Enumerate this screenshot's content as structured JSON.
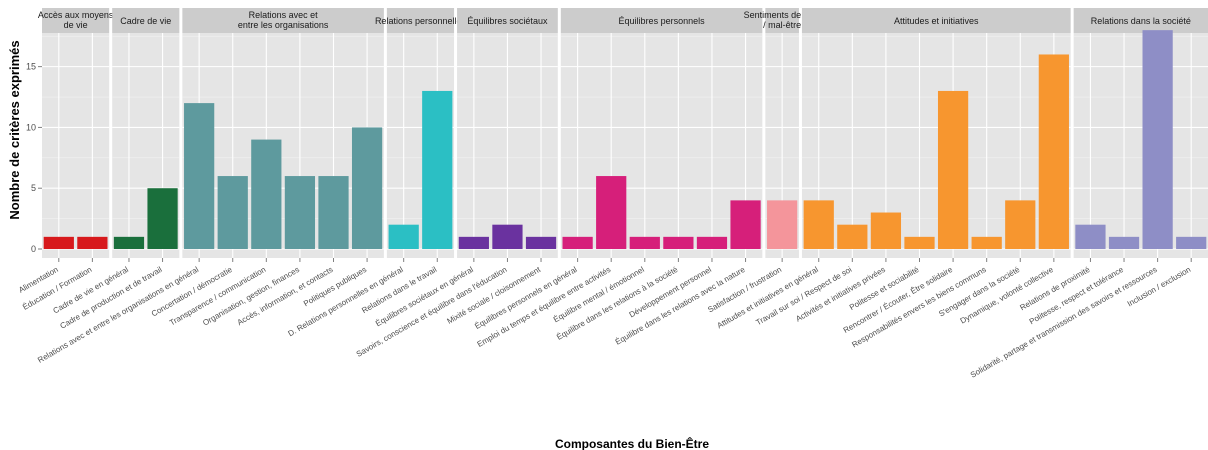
{
  "chart_data": {
    "type": "bar",
    "xlabel": "Composantes du Bien-Être",
    "ylabel": "Nombre de critères exprimés",
    "ylim": [
      0,
      19
    ],
    "yticks": [
      0,
      5,
      10,
      15
    ],
    "grid": true,
    "legend": "none",
    "facets": [
      {
        "title": "Accès aux moyens\nde vie",
        "color": "#d7191c",
        "categories": [
          "Alimentation",
          "Éducation / Formation"
        ],
        "values": [
          1,
          1
        ]
      },
      {
        "title": "Cadre de vie",
        "color": "#1a6f3c",
        "categories": [
          "Cadre de vie en général",
          "Cadre de production et de travail"
        ],
        "values": [
          1,
          5
        ]
      },
      {
        "title": "Relations avec et\nentre les organisations",
        "color": "#5e9a9e",
        "categories": [
          "Relations avec et entre les organisations en général",
          "Concertation / démocratie",
          "Transparence / communication",
          "Organisation, gestion, finances",
          "Accès, information, et contacts",
          "Politiques publiques"
        ],
        "values": [
          12,
          6,
          9,
          6,
          6,
          10
        ]
      },
      {
        "title": "Relations personnelles",
        "color": "#2bbfc4",
        "categories": [
          "D. Relations personnelles en général",
          "Relations dans le travail"
        ],
        "values": [
          2,
          13
        ]
      },
      {
        "title": "Équilibres sociétaux",
        "color": "#6a329f",
        "categories": [
          "Équilibres sociétaux en général",
          "Savoirs, conscience et équilibre dans l'éducation",
          "Mixité sociale / cloisonnement"
        ],
        "values": [
          1,
          2,
          1
        ]
      },
      {
        "title": "Équilibres personnels",
        "color": "#d61f7a",
        "categories": [
          "Équilibres personnels en général",
          "Emploi du temps et équilibre entre activités",
          "Équilibre mental / émotionnel",
          "Équilibre dans les relations à la société",
          "Développement personnel",
          "Équilibre dans les relations avec la nature"
        ],
        "values": [
          1,
          6,
          1,
          1,
          1,
          4
        ]
      },
      {
        "title": "Sentiments de bien\n/ mal-être",
        "color": "#f4959b",
        "categories": [
          "Satisfaction / frustration"
        ],
        "values": [
          4
        ]
      },
      {
        "title": "Attitudes et initiatives",
        "color": "#f7962f",
        "categories": [
          "Attitudes et initiatives en général",
          "Travail sur soi / Respect de soi",
          "Activités et initiatives privées",
          "Politesse et sociabilité",
          "Rencontrer / Écouter, Être solidaire",
          "Responsabilités envers les biens communs",
          "S'engager dans la société",
          "Dynamique, volonté collective"
        ],
        "values": [
          4,
          2,
          3,
          1,
          13,
          1,
          4,
          16
        ]
      },
      {
        "title": "Relations dans la société",
        "color": "#8e8ec6",
        "categories": [
          "Relations de proximité",
          "Politesse, respect et tolérance",
          "Solidarité, partage et transmission des savoirs et ressources",
          "Inclusion / exclusion"
        ],
        "values": [
          2,
          1,
          18,
          1
        ]
      }
    ]
  }
}
